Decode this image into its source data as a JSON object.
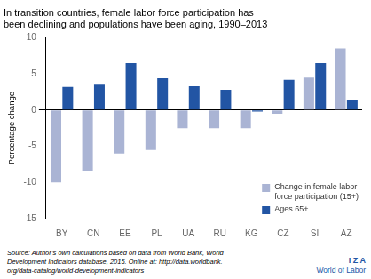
{
  "chart_data": {
    "type": "bar",
    "title": "In transition countries, female labor force participation has\nbeen declining and populations have been aging, 1990–2013",
    "categories": [
      "BY",
      "CN",
      "EE",
      "PL",
      "UA",
      "RU",
      "KG",
      "CZ",
      "SI",
      "AZ"
    ],
    "series": [
      {
        "name": "Change in female labor\nforce participation (15+)",
        "color": "#aab4d4",
        "values": [
          -10.0,
          -8.5,
          -6.0,
          -5.5,
          -2.5,
          -2.5,
          -2.5,
          -0.5,
          4.5,
          8.5
        ]
      },
      {
        "name": "Ages 65+",
        "color": "#2255a4",
        "values": [
          3.2,
          3.5,
          6.5,
          4.4,
          3.3,
          2.8,
          -0.2,
          4.2,
          6.5,
          1.4
        ]
      }
    ],
    "ylabel": "Percentage change",
    "ylim": [
      -15,
      10
    ],
    "yticks": [
      -15,
      -10,
      -5,
      0,
      5,
      10
    ],
    "grid": false,
    "legend": "lower right",
    "annotations": [
      "Source: Author’s own calculations based on data from World Bank, World\nDevelopment Indicators database, 2015. Online at: http://data.worldbank.\norg/data-catalog/world-development-indicators",
      "I Z A",
      "World of Labor"
    ]
  }
}
